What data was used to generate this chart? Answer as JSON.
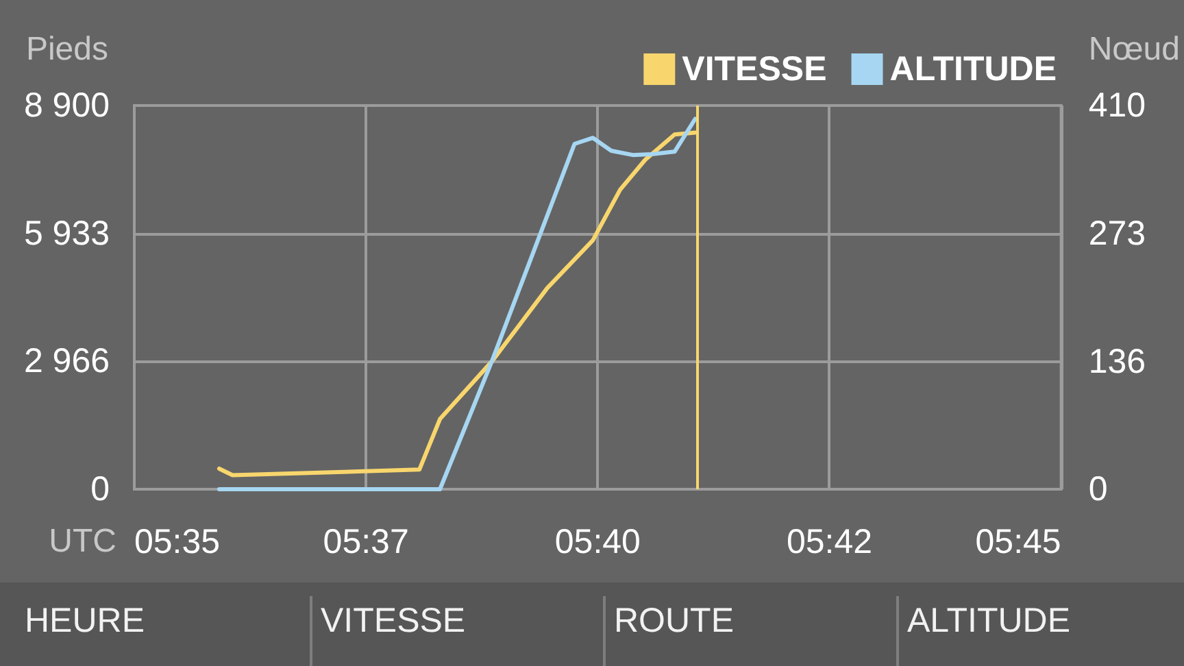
{
  "chart_data": {
    "type": "line",
    "legend": "top right",
    "xlabel": "UTC",
    "ylabel": "Pieds",
    "y2label": "Nœud",
    "xlim": [
      5.583333,
      5.75
    ],
    "xticks": [
      {
        "value": 5.583333,
        "label": "05:35"
      },
      {
        "value": 5.625,
        "label": "05:37"
      },
      {
        "value": 5.666667,
        "label": "05:40"
      },
      {
        "value": 5.708333,
        "label": "05:42"
      },
      {
        "value": 5.75,
        "label": "05:45"
      }
    ],
    "ylim": [
      0,
      8900
    ],
    "yticks": [
      0,
      {
        "value": 2966,
        "label": "2 966"
      },
      {
        "value": 5933,
        "label": "5 933"
      },
      {
        "value": 8900,
        "label": "8 900"
      }
    ],
    "y2lim": [
      0,
      410
    ],
    "y2ticks": [
      0,
      136,
      273,
      410
    ],
    "grid": true,
    "marker": "none",
    "series": [
      {
        "name": "VITESSE",
        "color": "#f8d66d",
        "axis": "y2",
        "x": [
          5.5986,
          5.601,
          5.6346,
          5.6383,
          5.6477,
          5.6576,
          5.6658,
          5.6707,
          5.6752,
          5.6805,
          5.6842
        ],
        "values": [
          22,
          15,
          21,
          75,
          137,
          215,
          266,
          320,
          352,
          379,
          381
        ]
      },
      {
        "name": "ALTITUDE",
        "color": "#a6d6f2",
        "x": [
          5.5986,
          5.6383,
          5.6477,
          5.6625,
          5.6658,
          5.6691,
          5.6731,
          5.6764,
          5.6805,
          5.6842
        ],
        "values": [
          0,
          0,
          2990,
          8010,
          8150,
          7850,
          7750,
          7770,
          7830,
          8590
        ]
      }
    ],
    "ref_lines": [
      {
        "axis": "x",
        "value": 5.6845,
        "color": "#f8d66d"
      }
    ],
    "annotations": [
      "HEURE",
      "VITESSE",
      "ROUTE",
      "ALTITUDE"
    ]
  }
}
